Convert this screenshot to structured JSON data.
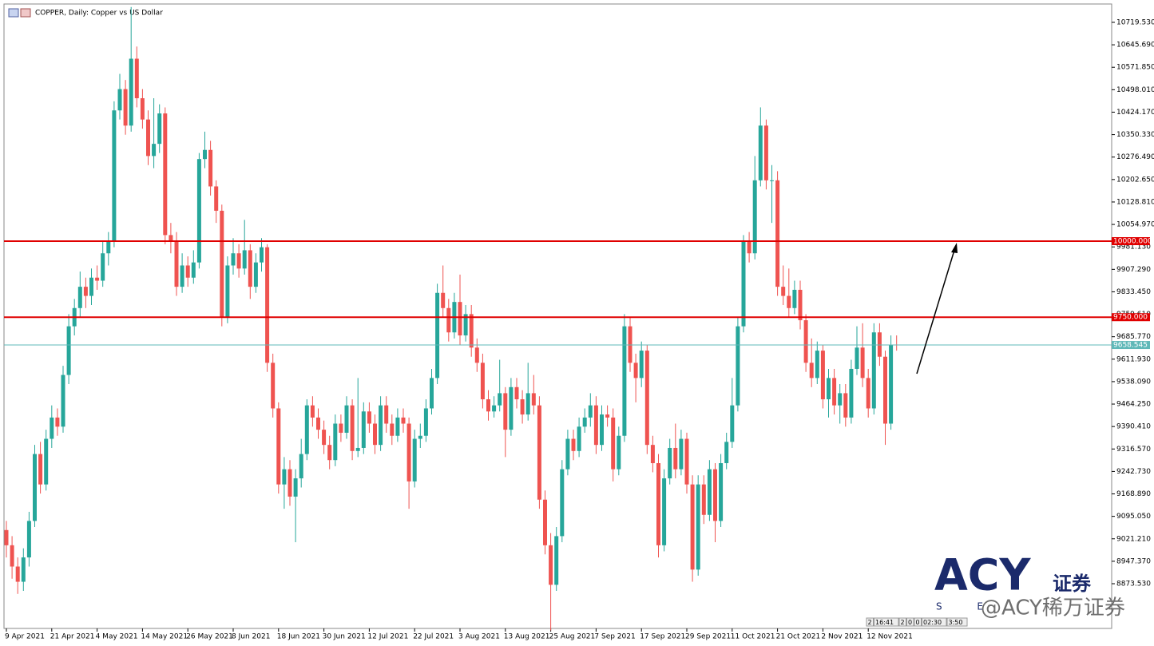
{
  "chart_data": {
    "type": "candlestick",
    "title": "COPPER, Daily:  Copper vs US Dollar",
    "up_color": "#26a69a",
    "down_color": "#ef5350",
    "categories": [
      "9 Apr 2021",
      null,
      null,
      null,
      null,
      null,
      null,
      null,
      "21 Apr 2021",
      null,
      null,
      null,
      null,
      null,
      null,
      null,
      "4 May 2021",
      null,
      null,
      null,
      null,
      null,
      null,
      null,
      "14 May 2021",
      null,
      null,
      null,
      null,
      null,
      null,
      null,
      "26 May 2021",
      null,
      null,
      null,
      null,
      null,
      null,
      null,
      "8 Jun 2021",
      null,
      null,
      null,
      null,
      null,
      null,
      null,
      "18 Jun 2021",
      null,
      null,
      null,
      null,
      null,
      null,
      null,
      "30 Jun 2021",
      null,
      null,
      null,
      null,
      null,
      null,
      null,
      "12 Jul 2021",
      null,
      null,
      null,
      null,
      null,
      null,
      null,
      "22 Jul 2021",
      null,
      null,
      null,
      null,
      null,
      null,
      null,
      "3 Aug 2021",
      null,
      null,
      null,
      null,
      null,
      null,
      null,
      "13 Aug 2021",
      null,
      null,
      null,
      null,
      null,
      null,
      null,
      "25 Aug 2021",
      null,
      null,
      null,
      null,
      null,
      null,
      null,
      "7 Sep 2021",
      null,
      null,
      null,
      null,
      null,
      null,
      null,
      "17 Sep 2021",
      null,
      null,
      null,
      null,
      null,
      null,
      null,
      "29 Sep 2021",
      null,
      null,
      null,
      null,
      null,
      null,
      null,
      "11 Oct 2021",
      null,
      null,
      null,
      null,
      null,
      null,
      null,
      "21 Oct 2021",
      null,
      null,
      null,
      null,
      null,
      null,
      null,
      "2 Nov 2021",
      null,
      null,
      null,
      null,
      null,
      null,
      null,
      "12 Nov 2021",
      null,
      null,
      null,
      null,
      null
    ],
    "open": [
      9050,
      9000,
      8930,
      8880,
      8960,
      9080,
      9300,
      9200,
      9350,
      9420,
      9390,
      9560,
      9720,
      9780,
      9850,
      9820,
      9880,
      9870,
      9960,
      10000,
      10430,
      10500,
      10380,
      10600,
      10470,
      10400,
      10280,
      10320,
      10420,
      10020,
      10000,
      9850,
      9920,
      9880,
      9930,
      10270,
      10300,
      10180,
      10100,
      9750,
      9920,
      9960,
      9910,
      9970,
      9850,
      9930,
      9980,
      9600,
      9450,
      9200,
      9250,
      9160,
      9220,
      9300,
      9460,
      9420,
      9380,
      9330,
      9280,
      9400,
      9370,
      9460,
      9310,
      9320,
      9440,
      9400,
      9330,
      9460,
      9400,
      9360,
      9420,
      9400,
      9210,
      9350,
      9360,
      9450,
      9550,
      9830,
      9780,
      9700,
      9800,
      9690,
      9760,
      9650,
      9600,
      9480,
      9440,
      9460,
      9500,
      9380,
      9520,
      9480,
      9430,
      9500,
      9460,
      9150,
      9000,
      8870,
      9030,
      9250,
      9350,
      9310,
      9390,
      9420,
      9460,
      9330,
      9430,
      9420,
      9250,
      9360,
      9720,
      9600,
      9550,
      9640,
      9330,
      9270,
      9000,
      9220,
      9320,
      9250,
      9350,
      9200,
      8920,
      9200,
      9100,
      9250,
      9080,
      9270,
      9340,
      9460,
      9720,
      10000,
      9960,
      10200,
      10380,
      10200,
      10200,
      9850,
      9820,
      9780,
      9840,
      9740,
      9600,
      9550,
      9640,
      9480,
      9550,
      9460,
      9500,
      9420,
      9580,
      9650,
      9550,
      9450,
      9700,
      9620,
      9400,
      9660
    ],
    "high": [
      9080,
      9030,
      8960,
      8990,
      9110,
      9330,
      9340,
      9380,
      9460,
      9450,
      9590,
      9760,
      9810,
      9900,
      9880,
      9910,
      9920,
      10000,
      10030,
      10460,
      10550,
      10530,
      10770,
      10640,
      10500,
      10430,
      10470,
      10450,
      10440,
      10060,
      10030,
      9960,
      9950,
      9970,
      10290,
      10360,
      10330,
      10200,
      10120,
      9950,
      10010,
      9990,
      10070,
      9990,
      9960,
      10010,
      9990,
      9630,
      9470,
      9290,
      9280,
      9250,
      9350,
      9480,
      9490,
      9450,
      9410,
      9360,
      9430,
      9430,
      9490,
      9480,
      9550,
      9470,
      9470,
      9430,
      9490,
      9490,
      9430,
      9450,
      9450,
      9420,
      9380,
      9400,
      9480,
      9580,
      9860,
      9920,
      9810,
      9830,
      9890,
      9790,
      9790,
      9680,
      9630,
      9510,
      9490,
      9610,
      9520,
      9550,
      9550,
      9510,
      9600,
      9560,
      9490,
      9180,
      9040,
      9060,
      9280,
      9380,
      9380,
      9420,
      9450,
      9500,
      9490,
      9460,
      9460,
      9450,
      9390,
      9760,
      9750,
      9630,
      9670,
      9660,
      9360,
      9300,
      9250,
      9350,
      9400,
      9380,
      9370,
      9230,
      9230,
      9230,
      9280,
      9270,
      9300,
      9370,
      9550,
      9750,
      10020,
      10030,
      10280,
      10440,
      10400,
      10250,
      10230,
      9920,
      9910,
      9870,
      9870,
      9760,
      9680,
      9670,
      9660,
      9580,
      9580,
      9530,
      9530,
      9610,
      9720,
      9730,
      9580,
      9730,
      9730,
      9640,
      9690,
      9690
    ],
    "low": [
      8960,
      8890,
      8840,
      8850,
      8930,
      9060,
      9170,
      9180,
      9320,
      9360,
      9370,
      9530,
      9690,
      9750,
      9780,
      9790,
      9840,
      9850,
      9920,
      9980,
      10400,
      10350,
      10360,
      10440,
      10370,
      10250,
      10240,
      10290,
      9990,
      9960,
      9820,
      9830,
      9850,
      9860,
      9910,
      10240,
      10150,
      10060,
      9720,
      9730,
      9890,
      9880,
      9890,
      9810,
      9830,
      9900,
      9570,
      9420,
      9170,
      9120,
      9130,
      9010,
      9190,
      9280,
      9390,
      9350,
      9300,
      9250,
      9260,
      9340,
      9350,
      9280,
      9290,
      9300,
      9370,
      9300,
      9310,
      9370,
      9330,
      9340,
      9370,
      9120,
      9190,
      9320,
      9340,
      9430,
      9530,
      9750,
      9670,
      9680,
      9660,
      9670,
      9620,
      9570,
      9450,
      9410,
      9420,
      9440,
      9290,
      9360,
      9450,
      9400,
      9410,
      9430,
      9120,
      8970,
      8720,
      8850,
      9010,
      9230,
      9280,
      9290,
      9370,
      9390,
      9300,
      9310,
      9390,
      9210,
      9230,
      9340,
      9570,
      9470,
      9520,
      9300,
      9240,
      8960,
      8980,
      9200,
      9220,
      9230,
      9170,
      8880,
      8900,
      9070,
      9080,
      9010,
      9060,
      9250,
      9320,
      9440,
      9700,
      9930,
      9940,
      10180,
      10170,
      10060,
      9820,
      9790,
      9750,
      9760,
      9710,
      9570,
      9520,
      9530,
      9450,
      9420,
      9430,
      9400,
      9390,
      9400,
      9560,
      9520,
      9420,
      9430,
      9590,
      9330,
      9380,
      9640
    ],
    "close": [
      9000,
      8930,
      8880,
      8960,
      9080,
      9300,
      9200,
      9350,
      9420,
      9390,
      9560,
      9720,
      9780,
      9850,
      9820,
      9880,
      9870,
      9960,
      10000,
      10430,
      10500,
      10380,
      10600,
      10470,
      10400,
      10280,
      10320,
      10420,
      10020,
      10000,
      9850,
      9920,
      9880,
      9930,
      10270,
      10300,
      10180,
      10100,
      9750,
      9920,
      9960,
      9910,
      9970,
      9850,
      9930,
      9980,
      9600,
      9450,
      9200,
      9250,
      9160,
      9220,
      9300,
      9460,
      9420,
      9380,
      9330,
      9280,
      9400,
      9370,
      9460,
      9310,
      9320,
      9440,
      9400,
      9330,
      9460,
      9400,
      9360,
      9420,
      9400,
      9210,
      9350,
      9360,
      9450,
      9550,
      9830,
      9780,
      9700,
      9800,
      9690,
      9760,
      9650,
      9600,
      9480,
      9440,
      9460,
      9500,
      9380,
      9520,
      9480,
      9430,
      9500,
      9460,
      9150,
      9000,
      8870,
      9030,
      9250,
      9350,
      9310,
      9390,
      9420,
      9460,
      9330,
      9430,
      9420,
      9250,
      9360,
      9720,
      9600,
      9550,
      9640,
      9330,
      9270,
      9000,
      9220,
      9320,
      9250,
      9350,
      9200,
      8920,
      9200,
      9100,
      9250,
      9080,
      9270,
      9340,
      9460,
      9720,
      10000,
      9960,
      10200,
      10380,
      10200,
      10200,
      9850,
      9820,
      9780,
      9840,
      9740,
      9600,
      9550,
      9640,
      9480,
      9550,
      9460,
      9500,
      9420,
      9580,
      9650,
      9550,
      9450,
      9700,
      9620,
      9400,
      9660,
      9658
    ],
    "ylim": [
      8726.5,
      10772
    ],
    "yticks": [
      {
        "value": 8873.53,
        "label": "8873.530"
      },
      {
        "value": 8947.37,
        "label": "8947.370"
      },
      {
        "value": 9021.21,
        "label": "9021.210"
      },
      {
        "value": 9095.05,
        "label": "9095.050"
      },
      {
        "value": 9168.89,
        "label": "9168.890"
      },
      {
        "value": 9242.73,
        "label": "9242.730"
      },
      {
        "value": 9316.57,
        "label": "9316.570"
      },
      {
        "value": 9390.41,
        "label": "9390.410"
      },
      {
        "value": 9464.25,
        "label": "9464.250"
      },
      {
        "value": 9538.09,
        "label": "9538.090"
      },
      {
        "value": 9611.93,
        "label": "9611.930"
      },
      {
        "value": 9685.77,
        "label": "9685.770"
      },
      {
        "value": 9759.61,
        "label": "9759.610"
      },
      {
        "value": 9833.45,
        "label": "9833.450"
      },
      {
        "value": 9907.29,
        "label": "9907.290"
      },
      {
        "value": 9981.13,
        "label": "9981.130"
      },
      {
        "value": 10054.97,
        "label": "10054.970"
      },
      {
        "value": 10128.81,
        "label": "10128.810"
      },
      {
        "value": 10202.65,
        "label": "10202.650"
      },
      {
        "value": 10276.49,
        "label": "10276.490"
      },
      {
        "value": 10350.33,
        "label": "10350.330"
      },
      {
        "value": 10424.17,
        "label": "10424.170"
      },
      {
        "value": 10498.01,
        "label": "10498.010"
      },
      {
        "value": 10571.85,
        "label": "10571.850"
      },
      {
        "value": 10645.69,
        "label": "10645.690"
      },
      {
        "value": 10719.53,
        "label": "10719.530"
      }
    ],
    "hlines": [
      {
        "value": 10000,
        "label": "10000.000",
        "color": "#e00000"
      },
      {
        "value": 9750,
        "label": "9750.000",
        "color": "#e00000"
      },
      {
        "value": 9658.545,
        "label": "9658.545",
        "color": "#5fb8b8"
      }
    ]
  },
  "watermark": {
    "logo": "ACY",
    "sub": "证券",
    "letters": "S E",
    "handle": "@ACY稀万证券"
  },
  "status": [
    "2",
    "16:41",
    "2",
    "0",
    "0",
    "02:30",
    "3:50"
  ]
}
